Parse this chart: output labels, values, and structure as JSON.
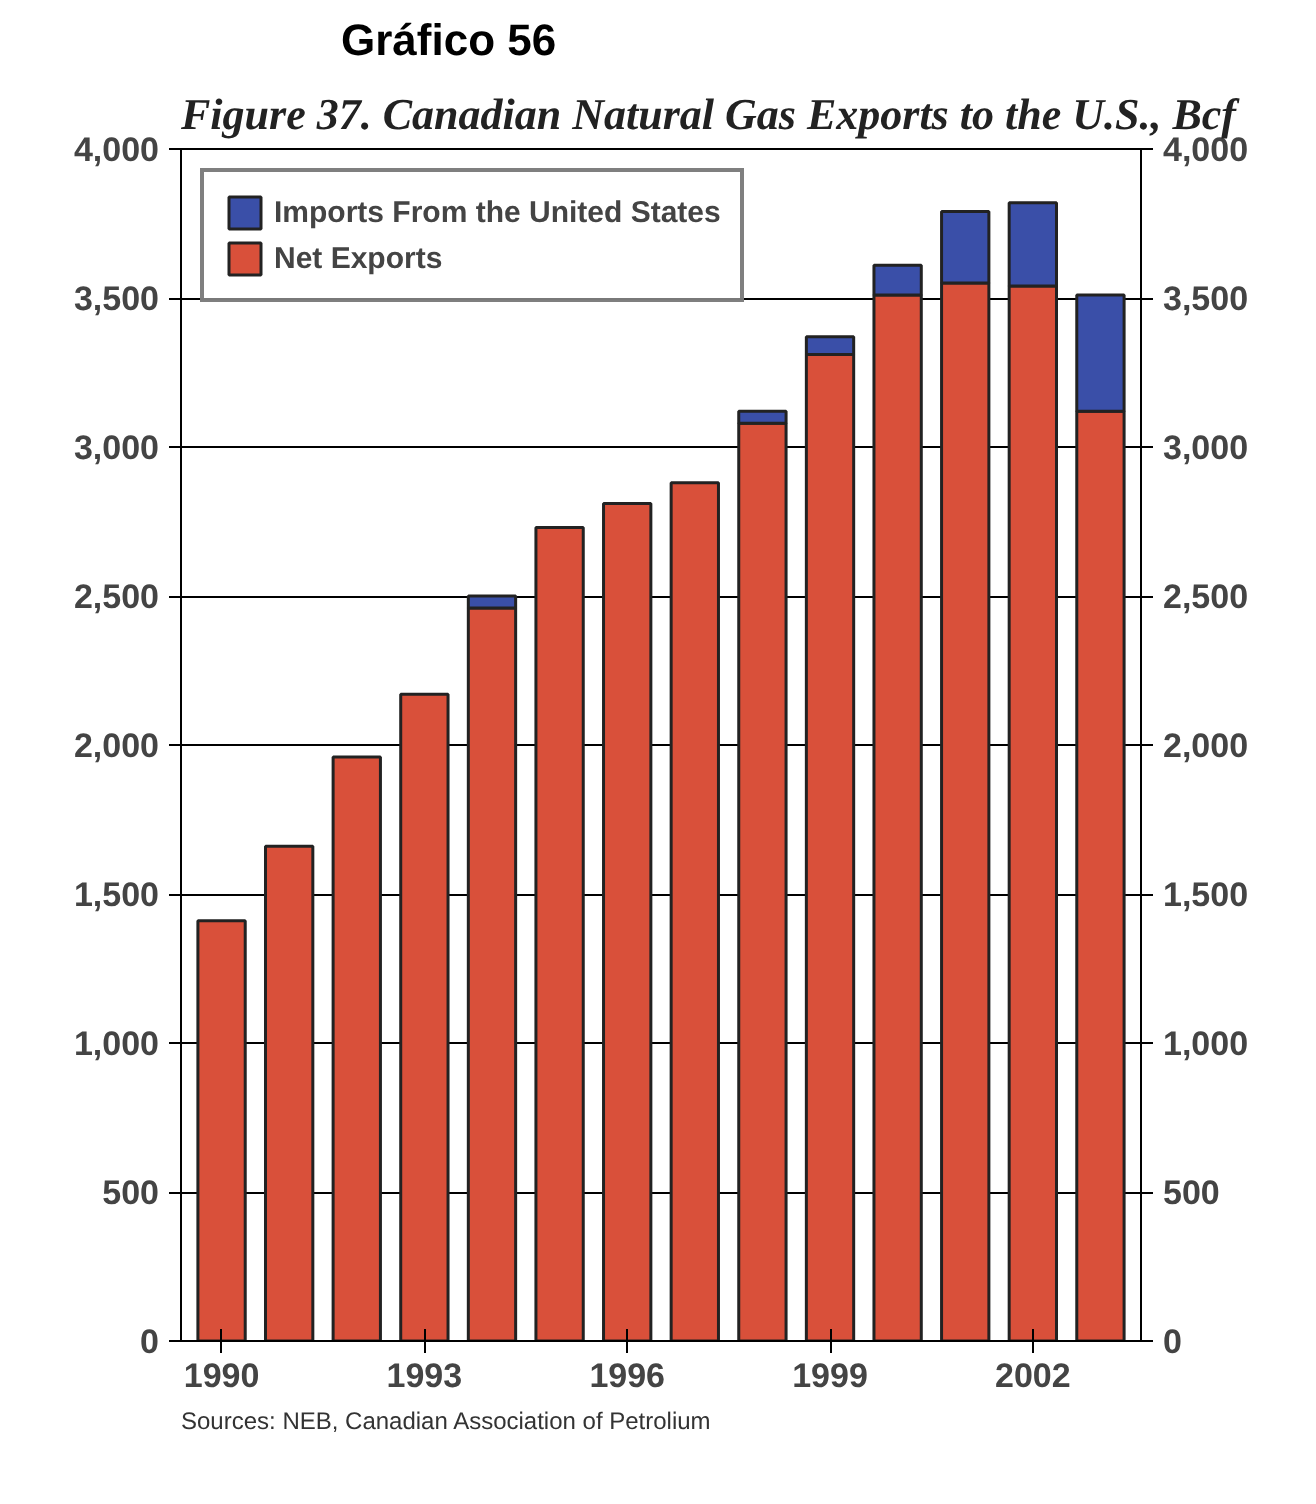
{
  "chart_data": {
    "type": "bar",
    "title": "Gráfico 56",
    "subtitle": "Figure 37. Canadian Natural Gas Exports to the U.S., Bcf",
    "x": [
      1990,
      1991,
      1992,
      1993,
      1994,
      1995,
      1996,
      1997,
      1998,
      1999,
      2000,
      2001,
      2002,
      2003
    ],
    "stacked": true,
    "series": [
      {
        "name": "Net Exports",
        "color": "#d9503a",
        "values": [
          1410,
          1660,
          1960,
          2170,
          2460,
          2730,
          2810,
          2880,
          3080,
          3310,
          3510,
          3550,
          3540,
          3120
        ]
      },
      {
        "name": "Imports From the United States",
        "color": "#3a4fa8",
        "values": [
          null,
          null,
          null,
          null,
          40,
          null,
          null,
          null,
          40,
          60,
          100,
          240,
          280,
          390
        ]
      }
    ],
    "xlim": [
      1989.4,
      2003.6
    ],
    "xticks": [
      1990,
      1993,
      1996,
      1999,
      2002
    ],
    "ylim": [
      0,
      4000
    ],
    "yticks": [
      {
        "value": 0,
        "label": "0"
      },
      {
        "value": 500,
        "label": "500"
      },
      {
        "value": 1000,
        "label": "1,000"
      },
      {
        "value": 1500,
        "label": "1,500"
      },
      {
        "value": 2000,
        "label": "2,000"
      },
      {
        "value": 2500,
        "label": "2,500"
      },
      {
        "value": 3000,
        "label": "3,000"
      },
      {
        "value": 3500,
        "label": "3,500"
      },
      {
        "value": 4000,
        "label": "4,000"
      }
    ],
    "y2lim": [
      0,
      4000
    ],
    "y2ticks": [
      {
        "value": 0,
        "label": "0"
      },
      {
        "value": 500,
        "label": "500"
      },
      {
        "value": 1000,
        "label": "1,000"
      },
      {
        "value": 1500,
        "label": "1,500"
      },
      {
        "value": 2000,
        "label": "2,000"
      },
      {
        "value": 2500,
        "label": "2,500"
      },
      {
        "value": 3000,
        "label": "3,000"
      },
      {
        "value": 3500,
        "label": "3,500"
      },
      {
        "value": 4000,
        "label": "4,000"
      }
    ],
    "grid": "y",
    "legend": "top left",
    "annotations": [
      "Sources: NEB, Canadian Association of Petrolium"
    ]
  }
}
